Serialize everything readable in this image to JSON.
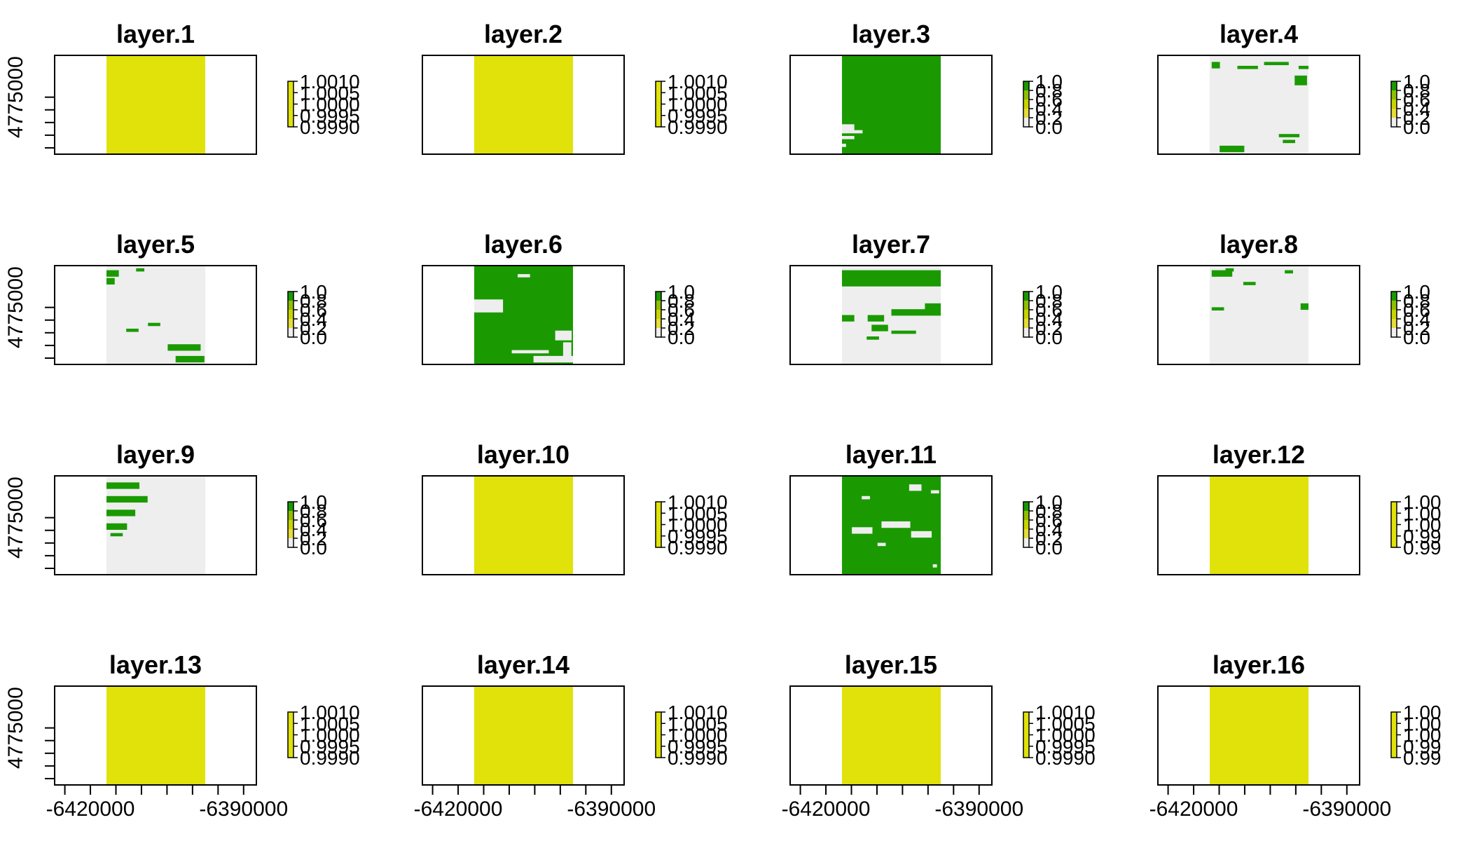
{
  "chart_data": {
    "type": "heatmap",
    "layout": {
      "rows": 4,
      "cols": 4
    },
    "colors": {
      "value_1": "#e0e209",
      "class_1": "#1a9a00",
      "class_0": "#eeeeee",
      "na": "#ffffff"
    },
    "x_ticks": [
      -6425000,
      -6420000,
      -6415000,
      -6410000,
      -6405000,
      -6400000,
      -6395000,
      -6390000
    ],
    "x_tick_labels": {
      "-6420000": "-6420000",
      "-6390000": "-6390000"
    },
    "y_ticks": [
      4755000,
      4760000,
      4765000,
      4770000,
      4775000
    ],
    "y_tick_labels": {
      "4775000": "4775000"
    },
    "legend_constant": [
      "1.0010",
      "1.0005",
      "1.0000",
      "0.9995",
      "0.9990"
    ],
    "legend_binary": [
      "1.0",
      "0.8",
      "0.6",
      "0.4",
      "0.2",
      "0.0"
    ],
    "legend_constant_clipped": [
      "1.00",
      "1.00",
      "1.00",
      "0.99",
      "0.99"
    ],
    "panels": [
      {
        "title": "layer.1",
        "kind": "constant",
        "legend": "constant"
      },
      {
        "title": "layer.2",
        "kind": "constant",
        "legend": "constant"
      },
      {
        "title": "layer.3",
        "kind": "binary",
        "legend": "binary",
        "base": "class_1",
        "patches": [
          [
            0,
            0.7,
            3,
            2
          ],
          [
            0,
            0.76,
            5,
            1
          ],
          [
            0,
            0.82,
            3,
            1
          ],
          [
            0,
            0.9,
            1,
            1
          ],
          [
            3.5,
            0.64,
            6,
            1
          ],
          [
            4,
            0.7,
            5,
            1
          ]
        ]
      },
      {
        "title": "layer.4",
        "kind": "binary",
        "legend": "binary",
        "base": "class_0",
        "patches": [
          [
            0.02,
            0.06,
            2,
            2
          ],
          [
            0.28,
            0.1,
            5,
            1
          ],
          [
            0.55,
            0.06,
            6,
            1
          ],
          [
            0.9,
            0.1,
            5,
            1
          ],
          [
            0.86,
            0.2,
            3,
            3
          ],
          [
            0.1,
            0.92,
            6,
            2
          ],
          [
            0.7,
            0.8,
            5,
            1
          ],
          [
            0.74,
            0.86,
            3,
            1
          ]
        ]
      },
      {
        "title": "layer.5",
        "kind": "binary",
        "legend": "binary",
        "base": "class_0",
        "patches": [
          [
            0,
            0.04,
            3,
            2
          ],
          [
            0,
            0.12,
            2,
            2
          ],
          [
            0.3,
            0.02,
            2,
            1
          ],
          [
            0.2,
            0.64,
            3,
            1
          ],
          [
            0.42,
            0.58,
            3,
            1
          ],
          [
            0.62,
            0.8,
            8,
            2
          ],
          [
            0.7,
            0.92,
            7,
            2
          ]
        ]
      },
      {
        "title": "layer.6",
        "kind": "binary",
        "legend": "binary",
        "base": "class_1",
        "patches": [
          [
            0,
            0.34,
            7,
            4
          ],
          [
            0.82,
            0.66,
            4,
            3
          ],
          [
            0.9,
            0.78,
            2,
            5
          ],
          [
            0.38,
            0.86,
            9,
            1
          ],
          [
            0.6,
            0.92,
            10,
            2
          ],
          [
            0.44,
            0.08,
            3,
            1
          ]
        ]
      },
      {
        "title": "layer.7",
        "kind": "binary",
        "legend": "binary",
        "base": "class_0",
        "patches": [
          [
            0,
            0.04,
            24,
            5
          ],
          [
            0,
            0.5,
            3,
            2
          ],
          [
            0.26,
            0.5,
            4,
            2
          ],
          [
            0.5,
            0.44,
            12,
            2
          ],
          [
            0.84,
            0.38,
            7,
            2
          ],
          [
            0.3,
            0.6,
            4,
            2
          ],
          [
            0.5,
            0.66,
            6,
            1
          ],
          [
            0.25,
            0.72,
            3,
            1
          ]
        ]
      },
      {
        "title": "layer.8",
        "kind": "binary",
        "legend": "binary",
        "base": "class_0",
        "patches": [
          [
            0.02,
            0.04,
            5,
            2
          ],
          [
            0.16,
            0.02,
            2,
            1
          ],
          [
            0.34,
            0.16,
            3,
            1
          ],
          [
            0.02,
            0.42,
            3,
            1
          ],
          [
            0.92,
            0.38,
            3,
            2
          ],
          [
            0.76,
            0.04,
            2,
            1
          ]
        ]
      },
      {
        "title": "layer.9",
        "kind": "binary",
        "legend": "binary",
        "base": "class_0",
        "patches": [
          [
            0,
            0.06,
            8,
            2
          ],
          [
            0,
            0.2,
            10,
            2
          ],
          [
            0,
            0.34,
            7,
            2
          ],
          [
            0,
            0.48,
            5,
            2
          ],
          [
            0.04,
            0.58,
            3,
            1
          ]
        ]
      },
      {
        "title": "layer.10",
        "kind": "constant",
        "legend": "constant"
      },
      {
        "title": "layer.11",
        "kind": "binary",
        "legend": "binary",
        "base": "class_1",
        "patches": [
          [
            0.1,
            0.52,
            5,
            2
          ],
          [
            0.4,
            0.46,
            7,
            2
          ],
          [
            0.7,
            0.56,
            5,
            2
          ],
          [
            0.2,
            0.2,
            2,
            1
          ],
          [
            0.68,
            0.08,
            3,
            2
          ],
          [
            0.9,
            0.14,
            2,
            1
          ],
          [
            0.36,
            0.68,
            2,
            1
          ],
          [
            0.92,
            0.9,
            1,
            1
          ]
        ]
      },
      {
        "title": "layer.12",
        "kind": "constant",
        "legend": "constant_clipped"
      },
      {
        "title": "layer.13",
        "kind": "constant",
        "legend": "constant"
      },
      {
        "title": "layer.14",
        "kind": "constant",
        "legend": "constant"
      },
      {
        "title": "layer.15",
        "kind": "constant",
        "legend": "constant"
      },
      {
        "title": "layer.16",
        "kind": "constant",
        "legend": "constant_clipped"
      }
    ]
  }
}
